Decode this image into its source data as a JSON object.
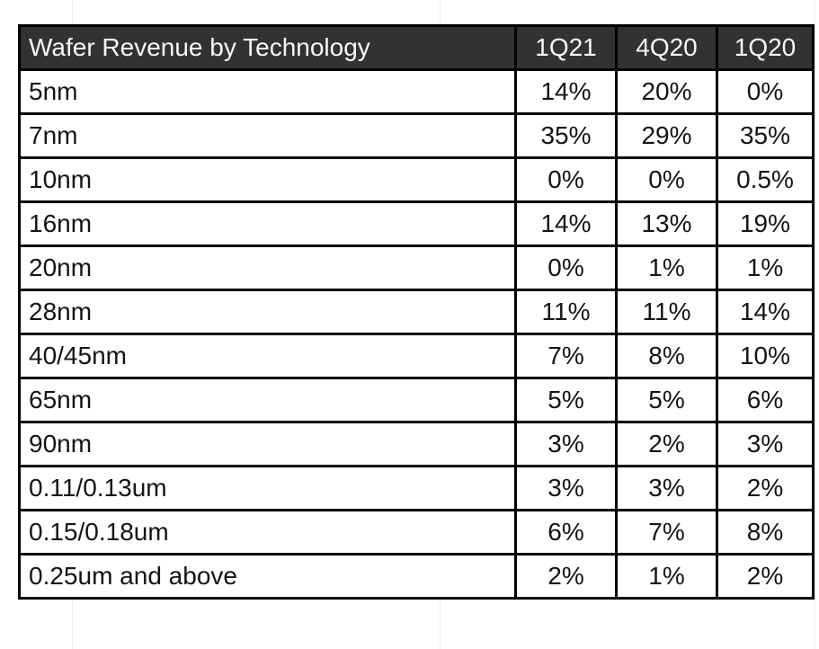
{
  "table": {
    "title": "Wafer Revenue by Technology",
    "columns": [
      "1Q21",
      "4Q20",
      "1Q20"
    ],
    "rows": [
      {
        "label": "5nm",
        "values": [
          "14%",
          "20%",
          "0%"
        ]
      },
      {
        "label": "7nm",
        "values": [
          "35%",
          "29%",
          "35%"
        ]
      },
      {
        "label": "10nm",
        "values": [
          "0%",
          "0%",
          "0.5%"
        ]
      },
      {
        "label": "16nm",
        "values": [
          "14%",
          "13%",
          "19%"
        ]
      },
      {
        "label": "20nm",
        "values": [
          "0%",
          "1%",
          "1%"
        ]
      },
      {
        "label": "28nm",
        "values": [
          "11%",
          "11%",
          "14%"
        ]
      },
      {
        "label": "40/45nm",
        "values": [
          "7%",
          "8%",
          "10%"
        ]
      },
      {
        "label": "65nm",
        "values": [
          "5%",
          "5%",
          "6%"
        ]
      },
      {
        "label": "90nm",
        "values": [
          "3%",
          "2%",
          "3%"
        ]
      },
      {
        "label": "0.11/0.13um",
        "values": [
          "3%",
          "3%",
          "2%"
        ]
      },
      {
        "label": "0.15/0.18um",
        "values": [
          "6%",
          "7%",
          "8%"
        ]
      },
      {
        "label": "0.25um and above",
        "values": [
          "2%",
          "1%",
          "2%"
        ]
      }
    ]
  },
  "colors": {
    "header_bg": "#323232",
    "header_text": "#f7f7f7",
    "border": "#000000",
    "body_text": "#141414",
    "body_bg": "#ffffff"
  },
  "chart_data": {
    "type": "table",
    "title": "Wafer Revenue by Technology",
    "categories": [
      "5nm",
      "7nm",
      "10nm",
      "16nm",
      "20nm",
      "28nm",
      "40/45nm",
      "65nm",
      "90nm",
      "0.11/0.13um",
      "0.15/0.18um",
      "0.25um and above"
    ],
    "series": [
      {
        "name": "1Q21",
        "values": [
          14,
          35,
          0,
          14,
          0,
          11,
          7,
          5,
          3,
          3,
          6,
          2
        ]
      },
      {
        "name": "4Q20",
        "values": [
          20,
          29,
          0,
          13,
          1,
          11,
          8,
          5,
          2,
          3,
          7,
          1
        ]
      },
      {
        "name": "1Q20",
        "values": [
          0,
          35,
          0.5,
          19,
          1,
          14,
          10,
          6,
          3,
          2,
          8,
          2
        ]
      }
    ],
    "unit": "%"
  }
}
